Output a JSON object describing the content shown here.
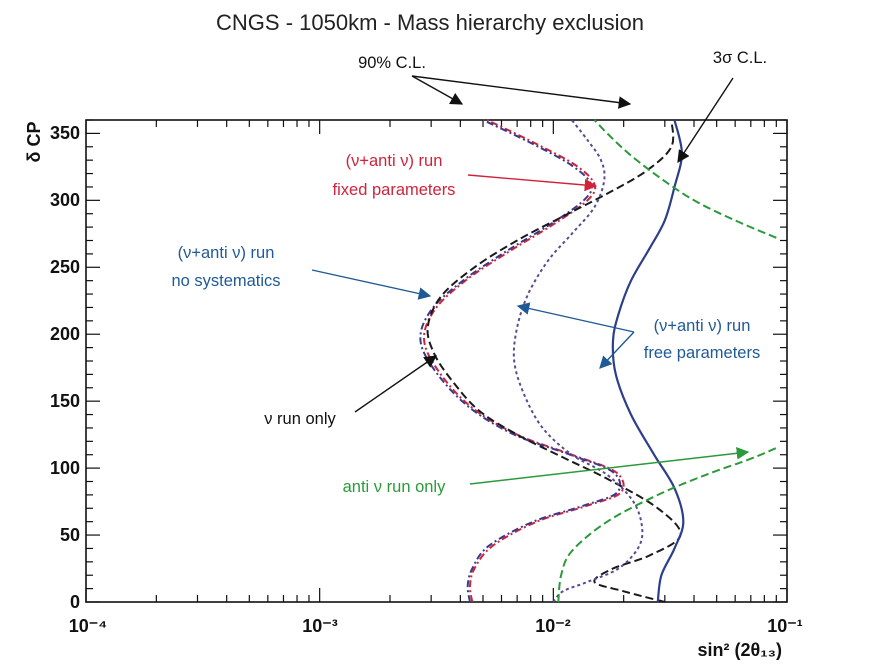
{
  "chart_data": {
    "type": "line",
    "title": "CNGS - 1050km - Mass hierarchy exclusion",
    "xlabel": "sin² (2θ₁₃)",
    "ylabel": "δ CP",
    "xscale": "log",
    "xlim": [
      0.0001,
      0.1
    ],
    "ylim": [
      0,
      360
    ],
    "x_tick_labels": [
      "10⁻⁴",
      "10⁻³",
      "10⁻²",
      "10⁻¹"
    ],
    "y_tick_labels": [
      "0",
      "50",
      "100",
      "150",
      "200",
      "250",
      "300",
      "350"
    ],
    "series": [
      {
        "name": "(ν+anti ν) run fixed parameters (90% C.L.)",
        "color": "#d0233a",
        "dash": "dash-dot",
        "points": [
          [
            0.0045,
            0
          ],
          [
            0.0044,
            12
          ],
          [
            0.0046,
            25
          ],
          [
            0.0055,
            42
          ],
          [
            0.0085,
            60
          ],
          [
            0.014,
            72
          ],
          [
            0.0195,
            82
          ],
          [
            0.0185,
            97
          ],
          [
            0.012,
            110
          ],
          [
            0.007,
            125
          ],
          [
            0.0045,
            145
          ],
          [
            0.0033,
            170
          ],
          [
            0.0028,
            195
          ],
          [
            0.0031,
            218
          ],
          [
            0.0042,
            240
          ],
          [
            0.0065,
            262
          ],
          [
            0.01,
            282
          ],
          [
            0.014,
            300
          ],
          [
            0.015,
            312
          ],
          [
            0.0125,
            326
          ],
          [
            0.0085,
            342
          ],
          [
            0.0052,
            360
          ]
        ]
      },
      {
        "name": "(ν+anti ν) run no systematics (90% C.L.)",
        "color": "#3a3a8c",
        "dash": "dash-dot",
        "points": [
          [
            0.0044,
            0
          ],
          [
            0.0043,
            12
          ],
          [
            0.0045,
            25
          ],
          [
            0.0053,
            42
          ],
          [
            0.0082,
            60
          ],
          [
            0.0135,
            72
          ],
          [
            0.0188,
            82
          ],
          [
            0.018,
            97
          ],
          [
            0.0118,
            110
          ],
          [
            0.0068,
            125
          ],
          [
            0.0044,
            145
          ],
          [
            0.0032,
            170
          ],
          [
            0.0027,
            195
          ],
          [
            0.003,
            218
          ],
          [
            0.0041,
            240
          ],
          [
            0.0063,
            262
          ],
          [
            0.0097,
            282
          ],
          [
            0.0135,
            300
          ],
          [
            0.0145,
            312
          ],
          [
            0.012,
            326
          ],
          [
            0.0082,
            342
          ],
          [
            0.005,
            360
          ]
        ]
      },
      {
        "name": "ν run only (90% C.L.)",
        "color": "#1a1a1a",
        "dash": "dashed",
        "points": [
          [
            0.03,
            0
          ],
          [
            0.02,
            8
          ],
          [
            0.015,
            15
          ],
          [
            0.018,
            25
          ],
          [
            0.026,
            35
          ],
          [
            0.035,
            50
          ],
          [
            0.028,
            70
          ],
          [
            0.017,
            92
          ],
          [
            0.011,
            108
          ],
          [
            0.007,
            125
          ],
          [
            0.0048,
            143
          ],
          [
            0.0037,
            165
          ],
          [
            0.0031,
            185
          ],
          [
            0.0029,
            205
          ],
          [
            0.0033,
            228
          ],
          [
            0.0046,
            250
          ],
          [
            0.007,
            270
          ],
          [
            0.011,
            288
          ],
          [
            0.017,
            305
          ],
          [
            0.025,
            322
          ],
          [
            0.032,
            340
          ],
          [
            0.032,
            360
          ]
        ]
      },
      {
        "name": "(ν+anti ν) run free parameters (90% C.L.)",
        "color": "#5a4a90",
        "dash": "dotted",
        "points": [
          [
            0.01,
            0
          ],
          [
            0.011,
            8
          ],
          [
            0.014,
            15
          ],
          [
            0.019,
            25
          ],
          [
            0.023,
            40
          ],
          [
            0.024,
            55
          ],
          [
            0.022,
            75
          ],
          [
            0.017,
            95
          ],
          [
            0.012,
            110
          ],
          [
            0.009,
            130
          ],
          [
            0.0075,
            155
          ],
          [
            0.0068,
            180
          ],
          [
            0.007,
            205
          ],
          [
            0.0078,
            230
          ],
          [
            0.0095,
            255
          ],
          [
            0.012,
            275
          ],
          [
            0.015,
            295
          ],
          [
            0.0165,
            315
          ],
          [
            0.016,
            330
          ],
          [
            0.014,
            345
          ],
          [
            0.012,
            360
          ]
        ]
      },
      {
        "name": "3σ C.L. (ν+anti ν) run free parameters",
        "color": "#2d3f8a",
        "dash": "solid",
        "points": [
          [
            0.028,
            0
          ],
          [
            0.029,
            20
          ],
          [
            0.033,
            40
          ],
          [
            0.036,
            60
          ],
          [
            0.033,
            85
          ],
          [
            0.027,
            110
          ],
          [
            0.0215,
            140
          ],
          [
            0.0185,
            170
          ],
          [
            0.018,
            195
          ],
          [
            0.019,
            215
          ],
          [
            0.0215,
            240
          ],
          [
            0.026,
            265
          ],
          [
            0.03,
            285
          ],
          [
            0.033,
            310
          ],
          [
            0.0355,
            335
          ],
          [
            0.033,
            360
          ]
        ]
      },
      {
        "name": "anti ν run only (90% C.L.)",
        "color": "#2a9a3a",
        "dash": "dashed",
        "segments": [
          [
            [
              0.0105,
              0
            ],
            [
              0.0108,
              20
            ],
            [
              0.012,
              38
            ],
            [
              0.017,
              60
            ],
            [
              0.028,
              80
            ],
            [
              0.045,
              95
            ],
            [
              0.07,
              107
            ],
            [
              0.09,
              115
            ]
          ],
          [
            [
              0.09,
              272
            ],
            [
              0.06,
              285
            ],
            [
              0.04,
              300
            ],
            [
              0.028,
              318
            ],
            [
              0.021,
              335
            ],
            [
              0.017,
              350
            ],
            [
              0.015,
              360
            ]
          ]
        ]
      }
    ],
    "annotations": [
      {
        "text": "90% C.L.",
        "color": "#111111"
      },
      {
        "text": "3σ C.L.",
        "color": "#111111"
      },
      {
        "text": "(ν+anti ν) run",
        "color": "#d0233a"
      },
      {
        "text": "fixed parameters",
        "color": "#d0233a"
      },
      {
        "text": "(ν+anti ν) run",
        "color": "#1f5a96"
      },
      {
        "text": "no systematics",
        "color": "#1f5a96"
      },
      {
        "text": "(ν+anti ν) run",
        "color": "#1f5a96"
      },
      {
        "text": "free parameters",
        "color": "#1f5a96"
      },
      {
        "text": "ν run only",
        "color": "#111111"
      },
      {
        "text": "anti ν run only",
        "color": "#2a9a3a"
      }
    ]
  }
}
